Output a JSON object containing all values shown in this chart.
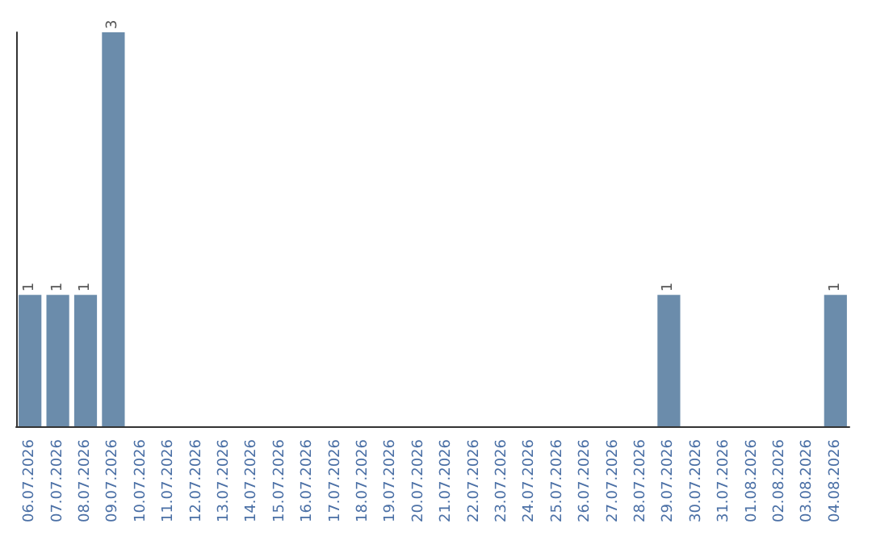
{
  "chart_data": {
    "type": "bar",
    "categories": [
      "06.07.2026",
      "07.07.2026",
      "08.07.2026",
      "09.07.2026",
      "10.07.2026",
      "11.07.2026",
      "12.07.2026",
      "13.07.2026",
      "14.07.2026",
      "15.07.2026",
      "16.07.2026",
      "17.07.2026",
      "18.07.2026",
      "19.07.2026",
      "20.07.2026",
      "21.07.2026",
      "22.07.2026",
      "23.07.2026",
      "24.07.2026",
      "25.07.2026",
      "26.07.2026",
      "27.07.2026",
      "28.07.2026",
      "29.07.2026",
      "30.07.2026",
      "31.07.2026",
      "01.08.2026",
      "02.08.2026",
      "03.08.2026",
      "04.08.2026"
    ],
    "values": [
      1,
      1,
      1,
      3,
      0,
      0,
      0,
      0,
      0,
      0,
      0,
      0,
      0,
      0,
      0,
      0,
      0,
      0,
      0,
      0,
      0,
      0,
      0,
      1,
      0,
      0,
      0,
      0,
      0,
      1
    ],
    "value_labels": [
      "1",
      "1",
      "1",
      "3",
      null,
      null,
      null,
      null,
      null,
      null,
      null,
      null,
      null,
      null,
      null,
      null,
      null,
      null,
      null,
      null,
      null,
      null,
      null,
      "1",
      null,
      null,
      null,
      null,
      null,
      "1"
    ],
    "color": "#6b8cab",
    "ylim": [
      0,
      3
    ],
    "grid": false
  }
}
